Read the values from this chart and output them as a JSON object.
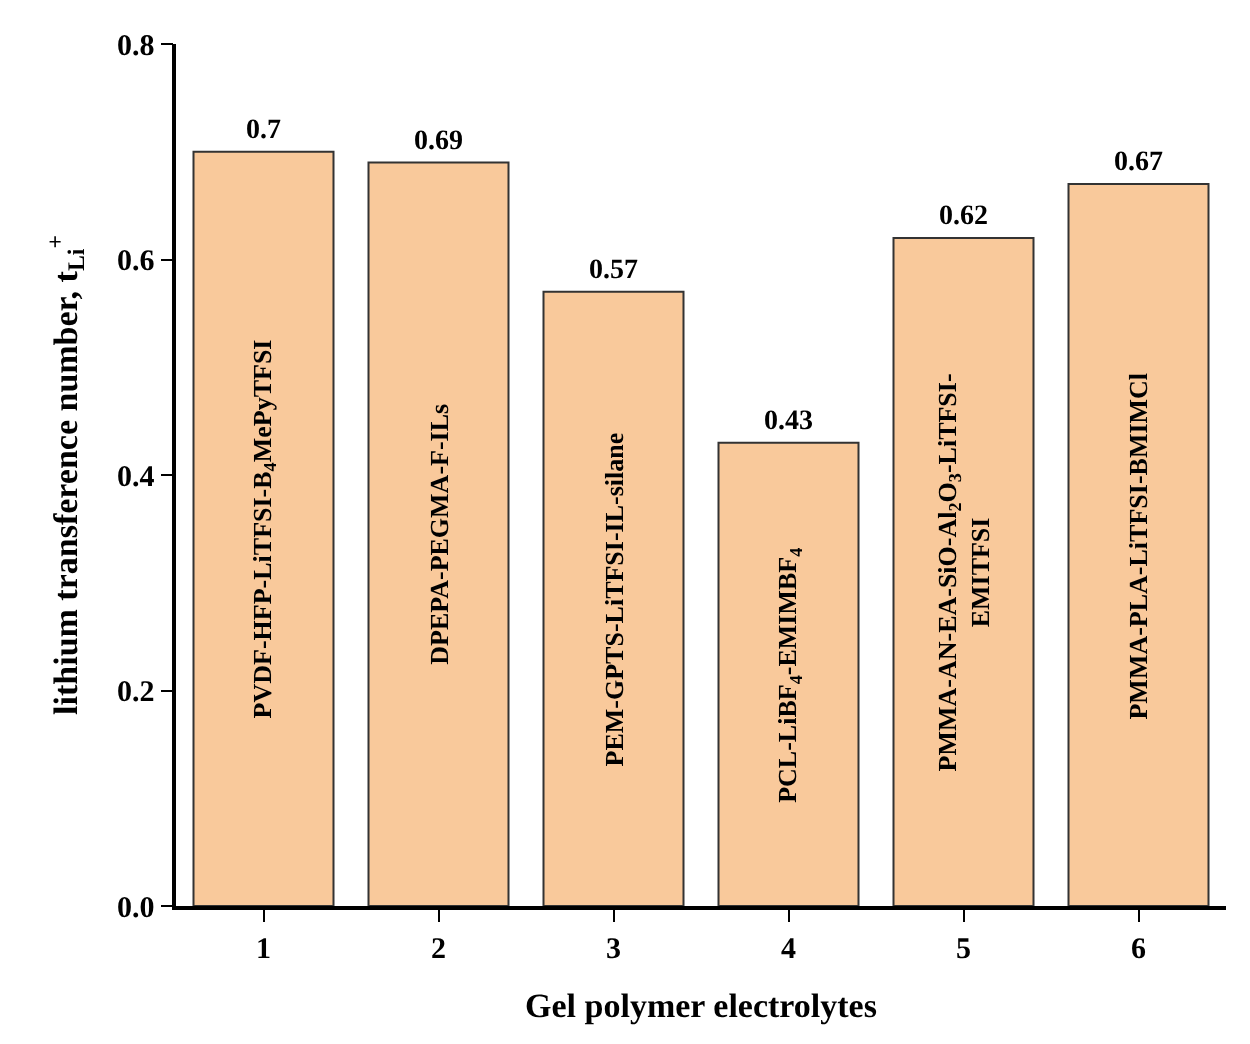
{
  "chart_data": {
    "type": "bar",
    "xlabel": "Gel polymer electrolytes",
    "ylabel": "lithium transference number, t$_{Li}$$^{+}$",
    "categories": [
      "1",
      "2",
      "3",
      "4",
      "5",
      "6"
    ],
    "values": [
      0.7,
      0.69,
      0.57,
      0.43,
      0.62,
      0.67
    ],
    "color": "#f9c99b",
    "ylim": [
      0,
      0.8
    ],
    "yticks": [
      {
        "value": 0,
        "label": "0.0"
      },
      0.2,
      0.4,
      0.6,
      0.8
    ],
    "data_labels": true,
    "annotations": [
      "PVDF-HFP-LiTFSI-B$_{4}$MePyTFSI",
      "DPEPA-PEGMA-F-ILs",
      "PEM-GPTS-LiTFSI-IL-silane",
      "PCL-LiBF$_{4}$-EMIMBF$_{4}$",
      "PMMA-AN-EA-SiO-Al$_{2}$O$_{3}$-LiTFSI-\nEMITFSI",
      "PMMA-PLA-LiTFSI-BMIMCl"
    ]
  }
}
